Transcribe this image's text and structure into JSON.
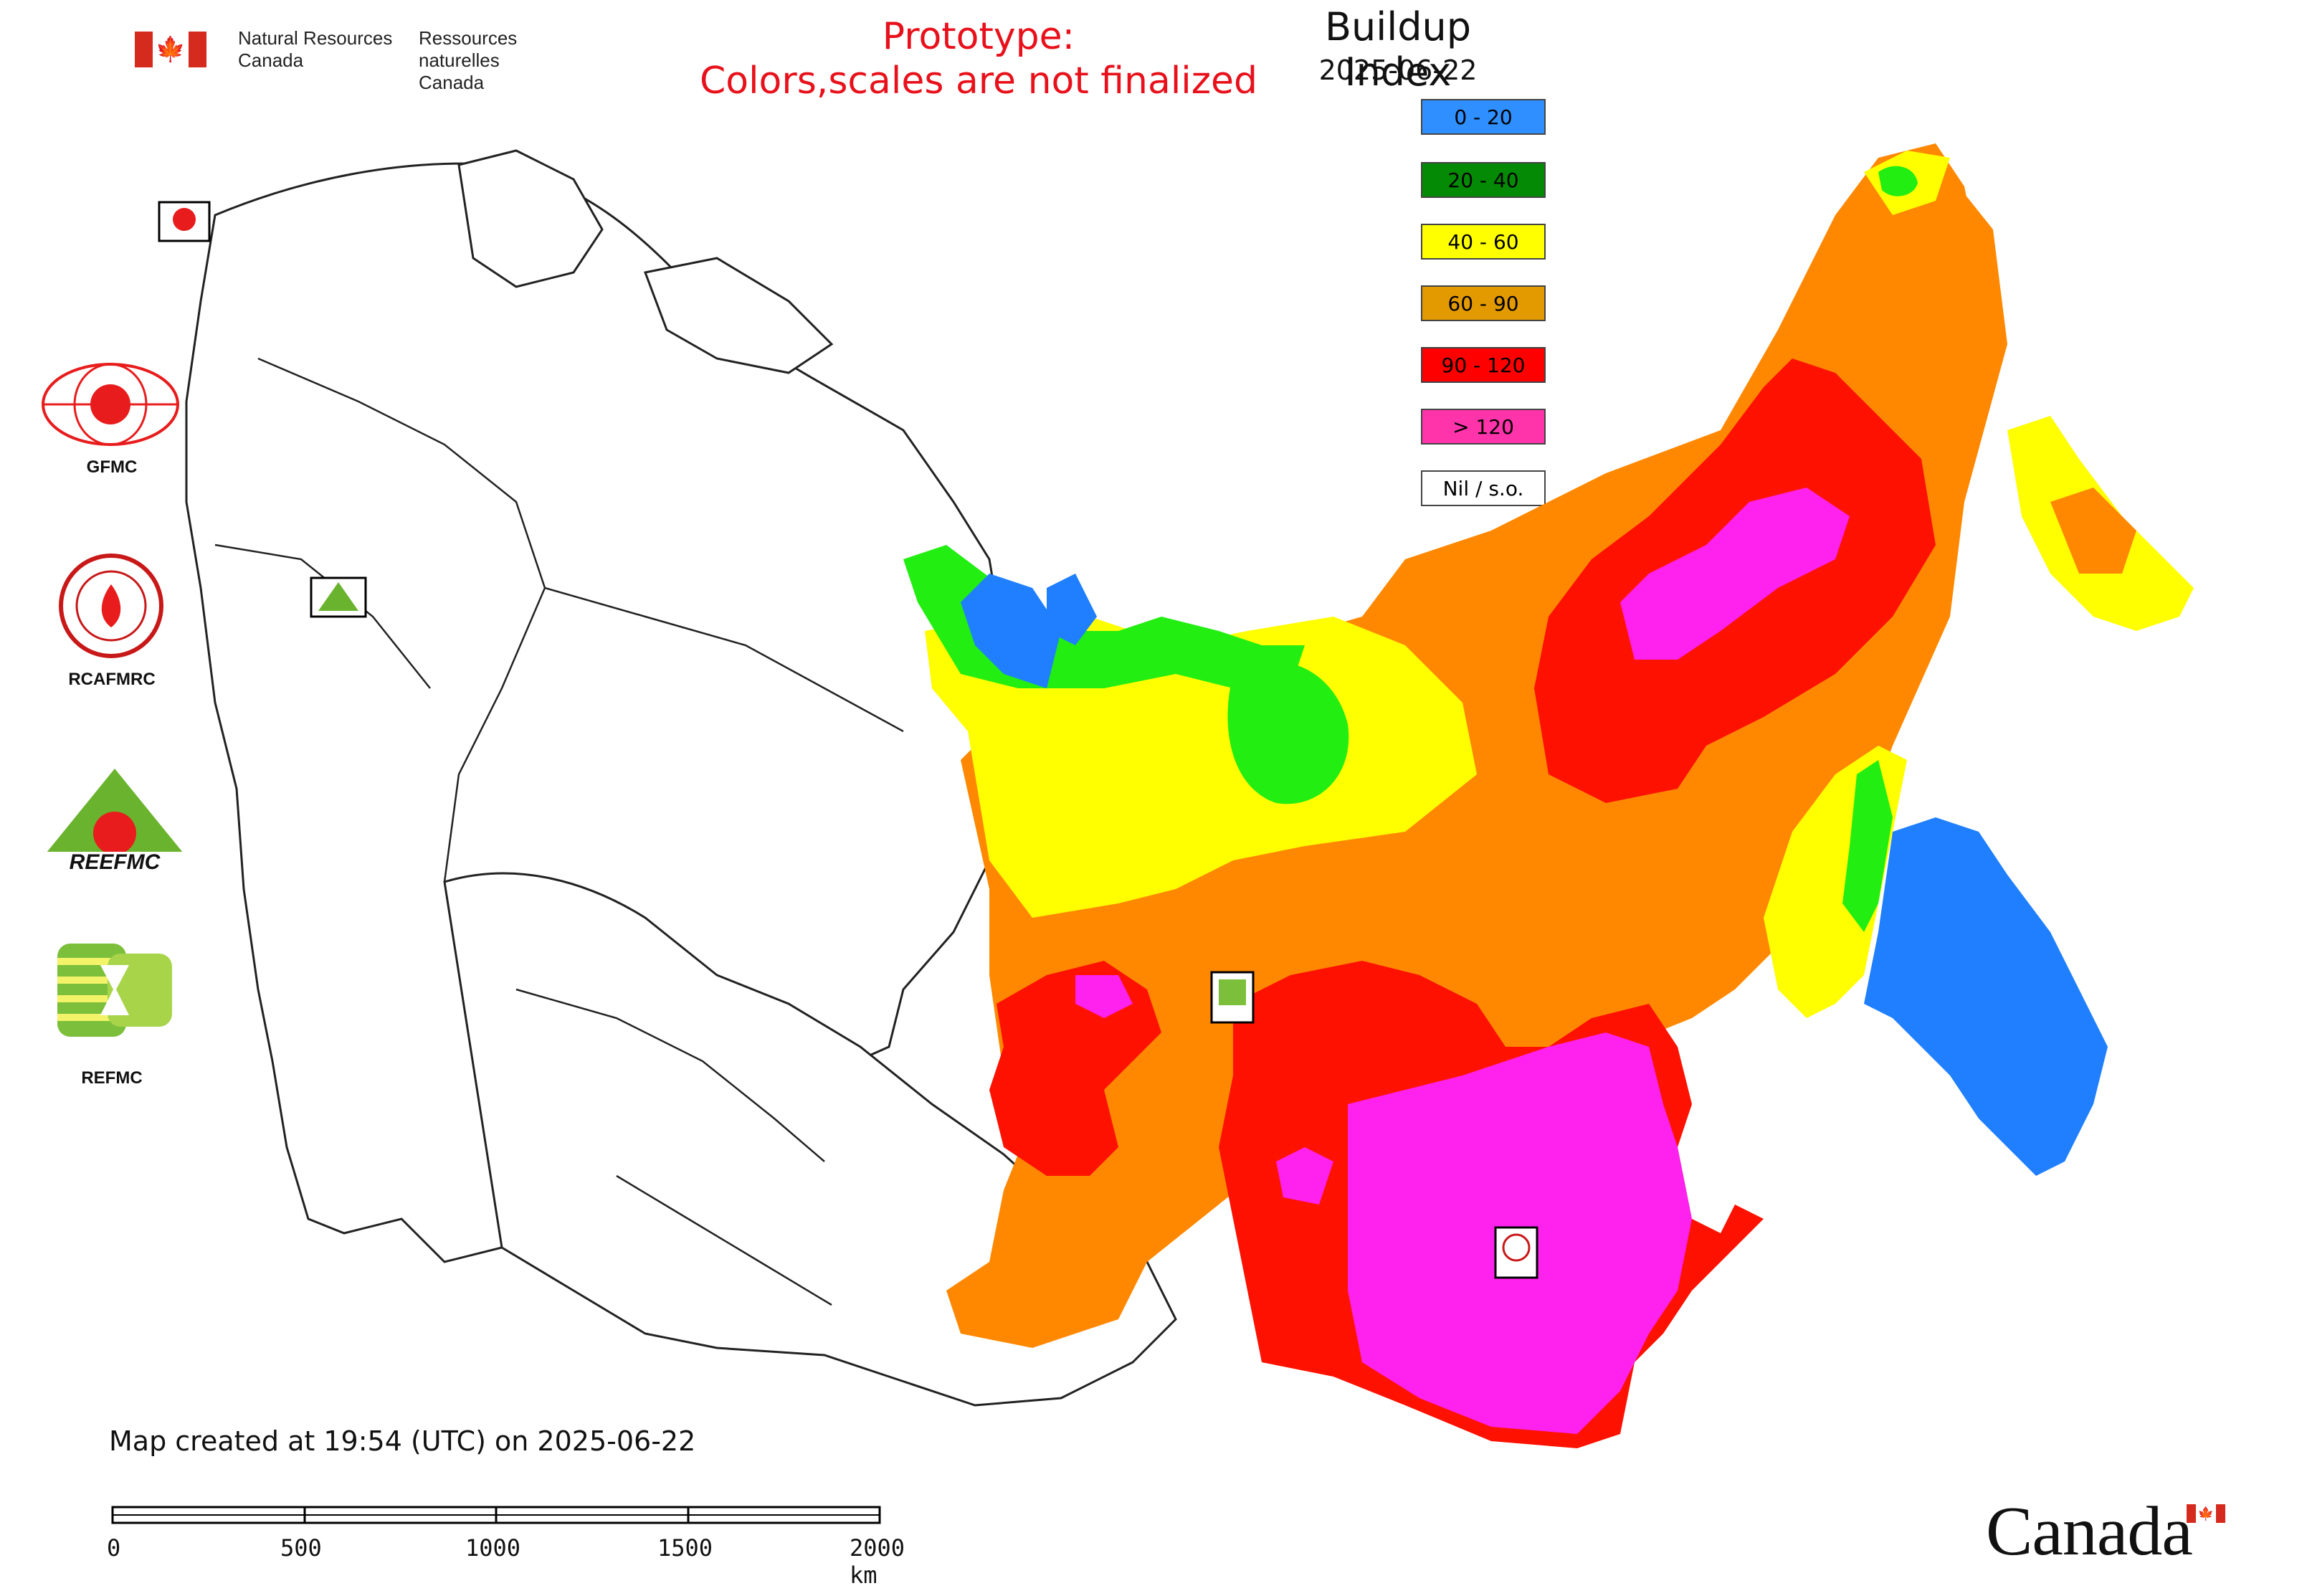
{
  "header": {
    "agency_en_line1": "Natural Resources",
    "agency_en_line2": "Canada",
    "agency_fr_line1": "Ressources naturelles",
    "agency_fr_line2": "Canada"
  },
  "prototype_notice": {
    "line1": "Prototype:",
    "line2": "Colors,scales are not finalized"
  },
  "legend": {
    "title": "Buildup Index",
    "date": "2025-06-22",
    "classes": [
      {
        "label": "0 - 20",
        "color": "#2f8fff"
      },
      {
        "label": "20 - 40",
        "color": "#058a05"
      },
      {
        "label": "40 - 60",
        "color": "#ffff00"
      },
      {
        "label": "60 - 90",
        "color": "#e29a00"
      },
      {
        "label": "90 - 120",
        "color": "#ff0000"
      },
      {
        "label": "> 120",
        "color": "#ff33aa"
      },
      {
        "label": "Nil / s.o.",
        "color": "#ffffff"
      }
    ]
  },
  "logos": {
    "gfmc": "GFMC",
    "rcafmrc": "RCAFMRC",
    "reefmc": "REEFMC",
    "refmc": "REFMC"
  },
  "footer": {
    "created_text": "Map created at 19:54 (UTC) on 2025-06-22",
    "scale_labels": [
      "0",
      "500",
      "1000",
      "1500",
      "2000 km"
    ],
    "wordmark": "Canada"
  },
  "map_colors": {
    "blue": "#1f7fff",
    "green": "#22ee11",
    "yellow": "#ffff00",
    "orange": "#ff8800",
    "red": "#ff1100",
    "magenta": "#ff22ee",
    "outline": "#222222"
  }
}
